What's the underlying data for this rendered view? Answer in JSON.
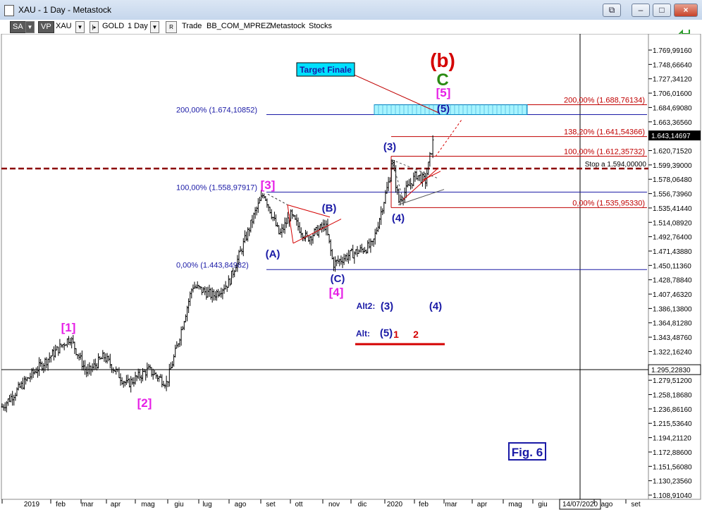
{
  "window": {
    "title": "XAU - 1 Day - Metastock",
    "buttons": [
      "restore",
      "minimize",
      "maximize",
      "close"
    ]
  },
  "toolbar": {
    "sa": "SA",
    "vp": "VP",
    "symbol": "XAU",
    "name": "GOLD",
    "period": "1 Day",
    "r": "R",
    "trade": "Trade",
    "account": "BB_COM_MPREZ",
    "source": "Metastock",
    "group": "Stocks"
  },
  "colors": {
    "blue_label": "#1a1aa6",
    "magenta": "#e61ee6",
    "red": "#d40000",
    "green": "#2a8a12",
    "fib_red": "#c00000",
    "fib_blue": "#1a1aa6",
    "target_box": "#00e0ff",
    "candle": "#000000"
  },
  "chart_data": {
    "type": "ohlc",
    "symbol": "XAU",
    "period": "1 Day",
    "y_ticks": [
      "1.769,99160",
      "1.748,66640",
      "1.727,34120",
      "1.706,01600",
      "1.684,69080",
      "1.663,36560",
      "1.642,04040",
      "1.620,71520",
      "1.599,39000",
      "1.578,06480",
      "1.556,73960",
      "1.535,41440",
      "1.514,08920",
      "1.492,76400",
      "1.471,43880",
      "1.450,11360",
      "1.428,78840",
      "1.407,46320",
      "1.386,13800",
      "1.364,81280",
      "1.343,48760",
      "1.322,16240",
      "1.295,22830",
      "1.279,51200",
      "1.258,18680",
      "1.236,86160",
      "1.215,53640",
      "1.194,21120",
      "1.172,88600",
      "1.151,56080",
      "1.130,23560",
      "1.108,91040"
    ],
    "y_tick_values": [
      1769.9916,
      1748.6664,
      1727.3412,
      1706.016,
      1684.6908,
      1663.3656,
      1642.0404,
      1620.7152,
      1599.39,
      1578.0648,
      1556.7396,
      1535.4144,
      1514.0892,
      1492.764,
      1471.4388,
      1450.1136,
      1428.7884,
      1407.4632,
      1386.138,
      1364.8128,
      1343.4876,
      1322.1624,
      1295.2283,
      1279.512,
      1258.1868,
      1236.8616,
      1215.5364,
      1194.2112,
      1172.886,
      1151.5608,
      1130.2356,
      1108.9104
    ],
    "last_price_label": "1.643,14697",
    "last_price": 1643.14697,
    "ref_price_label": "1.295,22830",
    "ref_price": 1295.2283,
    "x_ticks": [
      "2019",
      "feb",
      "mar",
      "apr",
      "mag",
      "giu",
      "lug",
      "ago",
      "set",
      "ott",
      "nov",
      "dic",
      "2020",
      "feb",
      "mar",
      "apr",
      "mag",
      "giu",
      "14/07/2020",
      "ago",
      "set"
    ],
    "cursor_date": "14/07/2020",
    "series_anchor_points": [
      {
        "date": "2019-01-01",
        "close": 1240
      },
      {
        "date": "2019-01-20",
        "close": 1290
      },
      {
        "date": "2019-02-20",
        "close": 1343
      },
      {
        "date": "2019-03-08",
        "close": 1290
      },
      {
        "date": "2019-03-28",
        "close": 1315
      },
      {
        "date": "2019-04-22",
        "close": 1273
      },
      {
        "date": "2019-05-13",
        "close": 1295
      },
      {
        "date": "2019-05-30",
        "close": 1275
      },
      {
        "date": "2019-06-10",
        "close": 1330
      },
      {
        "date": "2019-06-25",
        "close": 1420
      },
      {
        "date": "2019-07-15",
        "close": 1405
      },
      {
        "date": "2019-08-01",
        "close": 1425
      },
      {
        "date": "2019-08-26",
        "close": 1530
      },
      {
        "date": "2019-09-04",
        "close": 1558
      },
      {
        "date": "2019-09-20",
        "close": 1495
      },
      {
        "date": "2019-10-01",
        "close": 1525
      },
      {
        "date": "2019-10-16",
        "close": 1490
      },
      {
        "date": "2019-11-04",
        "close": 1510
      },
      {
        "date": "2019-11-12",
        "close": 1452
      },
      {
        "date": "2019-11-28",
        "close": 1465
      },
      {
        "date": "2019-12-20",
        "close": 1480
      },
      {
        "date": "2020-01-06",
        "close": 1580
      },
      {
        "date": "2020-01-08",
        "close": 1610
      },
      {
        "date": "2020-01-15",
        "close": 1545
      },
      {
        "date": "2020-02-03",
        "close": 1585
      },
      {
        "date": "2020-02-12",
        "close": 1575
      },
      {
        "date": "2020-02-21",
        "close": 1643
      }
    ],
    "fib_levels": [
      {
        "label": "200,00% (1.688,76134)",
        "value": 1688.76134,
        "color": "red"
      },
      {
        "label": "138,20% (1.641,54366)",
        "value": 1641.54366,
        "color": "red"
      },
      {
        "label": "100,00% (1.612,35732)",
        "value": 1612.35732,
        "color": "red"
      },
      {
        "label": "0,00% (1.535,95330)",
        "value": 1535.9533,
        "color": "red"
      },
      {
        "label": "200,00% (1.674,10852)",
        "value": 1674.10852,
        "color": "blue"
      },
      {
        "label": "100,00% (1.558,97917)",
        "value": 1558.97917,
        "color": "blue"
      },
      {
        "label": "0,00% (1.443,84982)",
        "value": 1443.84982,
        "color": "blue"
      }
    ],
    "stop_label": "Stop a 1.594,00000",
    "stop_value": 1594,
    "target_label": "Target Finale",
    "figure_label": "Fig. 6",
    "wave_labels": [
      {
        "text": "[1]",
        "color": "magenta"
      },
      {
        "text": "[2]",
        "color": "magenta"
      },
      {
        "text": "[3]",
        "color": "magenta"
      },
      {
        "text": "[4]",
        "color": "magenta"
      },
      {
        "text": "[5]",
        "color": "magenta"
      },
      {
        "text": "(A)",
        "color": "blue"
      },
      {
        "text": "(B)",
        "color": "blue"
      },
      {
        "text": "(C)",
        "color": "blue"
      },
      {
        "text": "(3)",
        "color": "blue"
      },
      {
        "text": "(4)",
        "color": "blue"
      },
      {
        "text": "(5)",
        "color": "blue"
      },
      {
        "text": "(b)",
        "color": "red"
      },
      {
        "text": "C",
        "color": "green"
      },
      {
        "text": "Alt2:",
        "color": "blue"
      },
      {
        "text": "(3)",
        "color": "blue"
      },
      {
        "text": "(4)",
        "color": "blue"
      },
      {
        "text": "Alt:",
        "color": "blue"
      },
      {
        "text": "(5)",
        "color": "blue"
      },
      {
        "text": "1",
        "color": "red"
      },
      {
        "text": "2",
        "color": "red"
      }
    ]
  }
}
